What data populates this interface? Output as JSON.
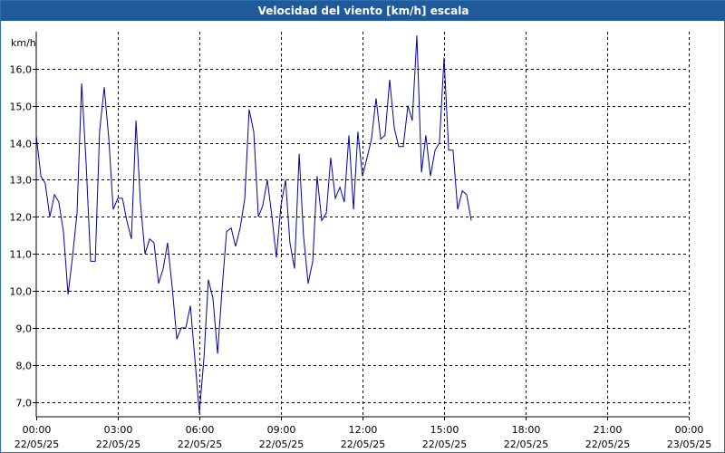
{
  "window": {
    "title": "Velocidad del viento [km/h] escala"
  },
  "colors": {
    "series": "#0000aa",
    "title_bg": "#1f5b9a",
    "grid": "#000000"
  },
  "chart_data": {
    "type": "line",
    "ylabel": "km/h",
    "grid": true,
    "ylim": [
      6.6,
      17.0
    ],
    "y_ticks": [
      7.0,
      8.0,
      9.0,
      10.0,
      11.0,
      12.0,
      13.0,
      14.0,
      15.0,
      16.0
    ],
    "y_tick_labels": [
      "7,0",
      "8,0",
      "9,0",
      "10,0",
      "11,0",
      "12,0",
      "13,0",
      "14,0",
      "15,0",
      "16,0"
    ],
    "xlim_hours": [
      0,
      24
    ],
    "x_ticks": [
      {
        "hour": 0,
        "time": "00:00",
        "date": "22/05/25"
      },
      {
        "hour": 3,
        "time": "03:00",
        "date": "22/05/25"
      },
      {
        "hour": 6,
        "time": "06:00",
        "date": "22/05/25"
      },
      {
        "hour": 9,
        "time": "09:00",
        "date": "22/05/25"
      },
      {
        "hour": 12,
        "time": "12:00",
        "date": "22/05/25"
      },
      {
        "hour": 15,
        "time": "15:00",
        "date": "22/05/25"
      },
      {
        "hour": 18,
        "time": "18:00",
        "date": "22/05/25"
      },
      {
        "hour": 21,
        "time": "21:00",
        "date": "22/05/25"
      },
      {
        "hour": 24,
        "time": "00:00",
        "date": "23/05/25"
      }
    ],
    "series": [
      {
        "points": [
          [
            0.0,
            14.2
          ],
          [
            0.17,
            13.1
          ],
          [
            0.33,
            12.9
          ],
          [
            0.5,
            12.0
          ],
          [
            0.67,
            12.6
          ],
          [
            0.83,
            12.4
          ],
          [
            1.0,
            11.6
          ],
          [
            1.17,
            9.9
          ],
          [
            1.33,
            10.9
          ],
          [
            1.5,
            12.1
          ],
          [
            1.67,
            15.6
          ],
          [
            1.83,
            13.5
          ],
          [
            2.0,
            10.8
          ],
          [
            2.17,
            10.8
          ],
          [
            2.33,
            14.3
          ],
          [
            2.5,
            15.5
          ],
          [
            2.67,
            14.1
          ],
          [
            2.83,
            12.2
          ],
          [
            3.0,
            12.5
          ],
          [
            3.17,
            12.5
          ],
          [
            3.33,
            11.9
          ],
          [
            3.5,
            11.4
          ],
          [
            3.67,
            14.6
          ],
          [
            3.83,
            12.4
          ],
          [
            4.0,
            11.0
          ],
          [
            4.17,
            11.4
          ],
          [
            4.33,
            11.3
          ],
          [
            4.5,
            10.2
          ],
          [
            4.67,
            10.6
          ],
          [
            4.83,
            11.3
          ],
          [
            5.0,
            10.1
          ],
          [
            5.17,
            8.7
          ],
          [
            5.33,
            9.0
          ],
          [
            5.5,
            9.0
          ],
          [
            5.67,
            9.6
          ],
          [
            5.83,
            8.2
          ],
          [
            6.0,
            6.7
          ],
          [
            6.17,
            8.2
          ],
          [
            6.33,
            10.3
          ],
          [
            6.5,
            9.8
          ],
          [
            6.67,
            8.3
          ],
          [
            6.83,
            10.0
          ],
          [
            7.0,
            11.6
          ],
          [
            7.17,
            11.7
          ],
          [
            7.33,
            11.2
          ],
          [
            7.5,
            11.7
          ],
          [
            7.67,
            12.5
          ],
          [
            7.83,
            14.9
          ],
          [
            8.0,
            14.3
          ],
          [
            8.17,
            12.0
          ],
          [
            8.33,
            12.3
          ],
          [
            8.5,
            13.0
          ],
          [
            8.67,
            12.0
          ],
          [
            8.83,
            10.9
          ],
          [
            9.0,
            12.3
          ],
          [
            9.17,
            13.0
          ],
          [
            9.33,
            11.3
          ],
          [
            9.5,
            10.6
          ],
          [
            9.67,
            13.7
          ],
          [
            9.83,
            11.5
          ],
          [
            10.0,
            10.2
          ],
          [
            10.17,
            10.8
          ],
          [
            10.33,
            13.1
          ],
          [
            10.5,
            11.9
          ],
          [
            10.67,
            12.1
          ],
          [
            10.83,
            13.6
          ],
          [
            11.0,
            12.5
          ],
          [
            11.17,
            12.8
          ],
          [
            11.33,
            12.4
          ],
          [
            11.5,
            14.2
          ],
          [
            11.67,
            12.2
          ],
          [
            11.83,
            14.3
          ],
          [
            12.0,
            13.1
          ],
          [
            12.17,
            13.6
          ],
          [
            12.33,
            14.1
          ],
          [
            12.5,
            15.2
          ],
          [
            12.67,
            14.1
          ],
          [
            12.83,
            14.2
          ],
          [
            13.0,
            15.7
          ],
          [
            13.17,
            14.4
          ],
          [
            13.33,
            13.9
          ],
          [
            13.5,
            13.9
          ],
          [
            13.67,
            15.0
          ],
          [
            13.83,
            14.6
          ],
          [
            14.0,
            16.9
          ],
          [
            14.17,
            13.2
          ],
          [
            14.33,
            14.2
          ],
          [
            14.5,
            13.1
          ],
          [
            14.67,
            13.8
          ],
          [
            14.83,
            14.0
          ],
          [
            15.0,
            16.3
          ],
          [
            15.17,
            13.8
          ],
          [
            15.33,
            13.8
          ],
          [
            15.5,
            12.2
          ],
          [
            15.67,
            12.7
          ],
          [
            15.83,
            12.6
          ],
          [
            16.0,
            11.9
          ]
        ]
      }
    ]
  }
}
